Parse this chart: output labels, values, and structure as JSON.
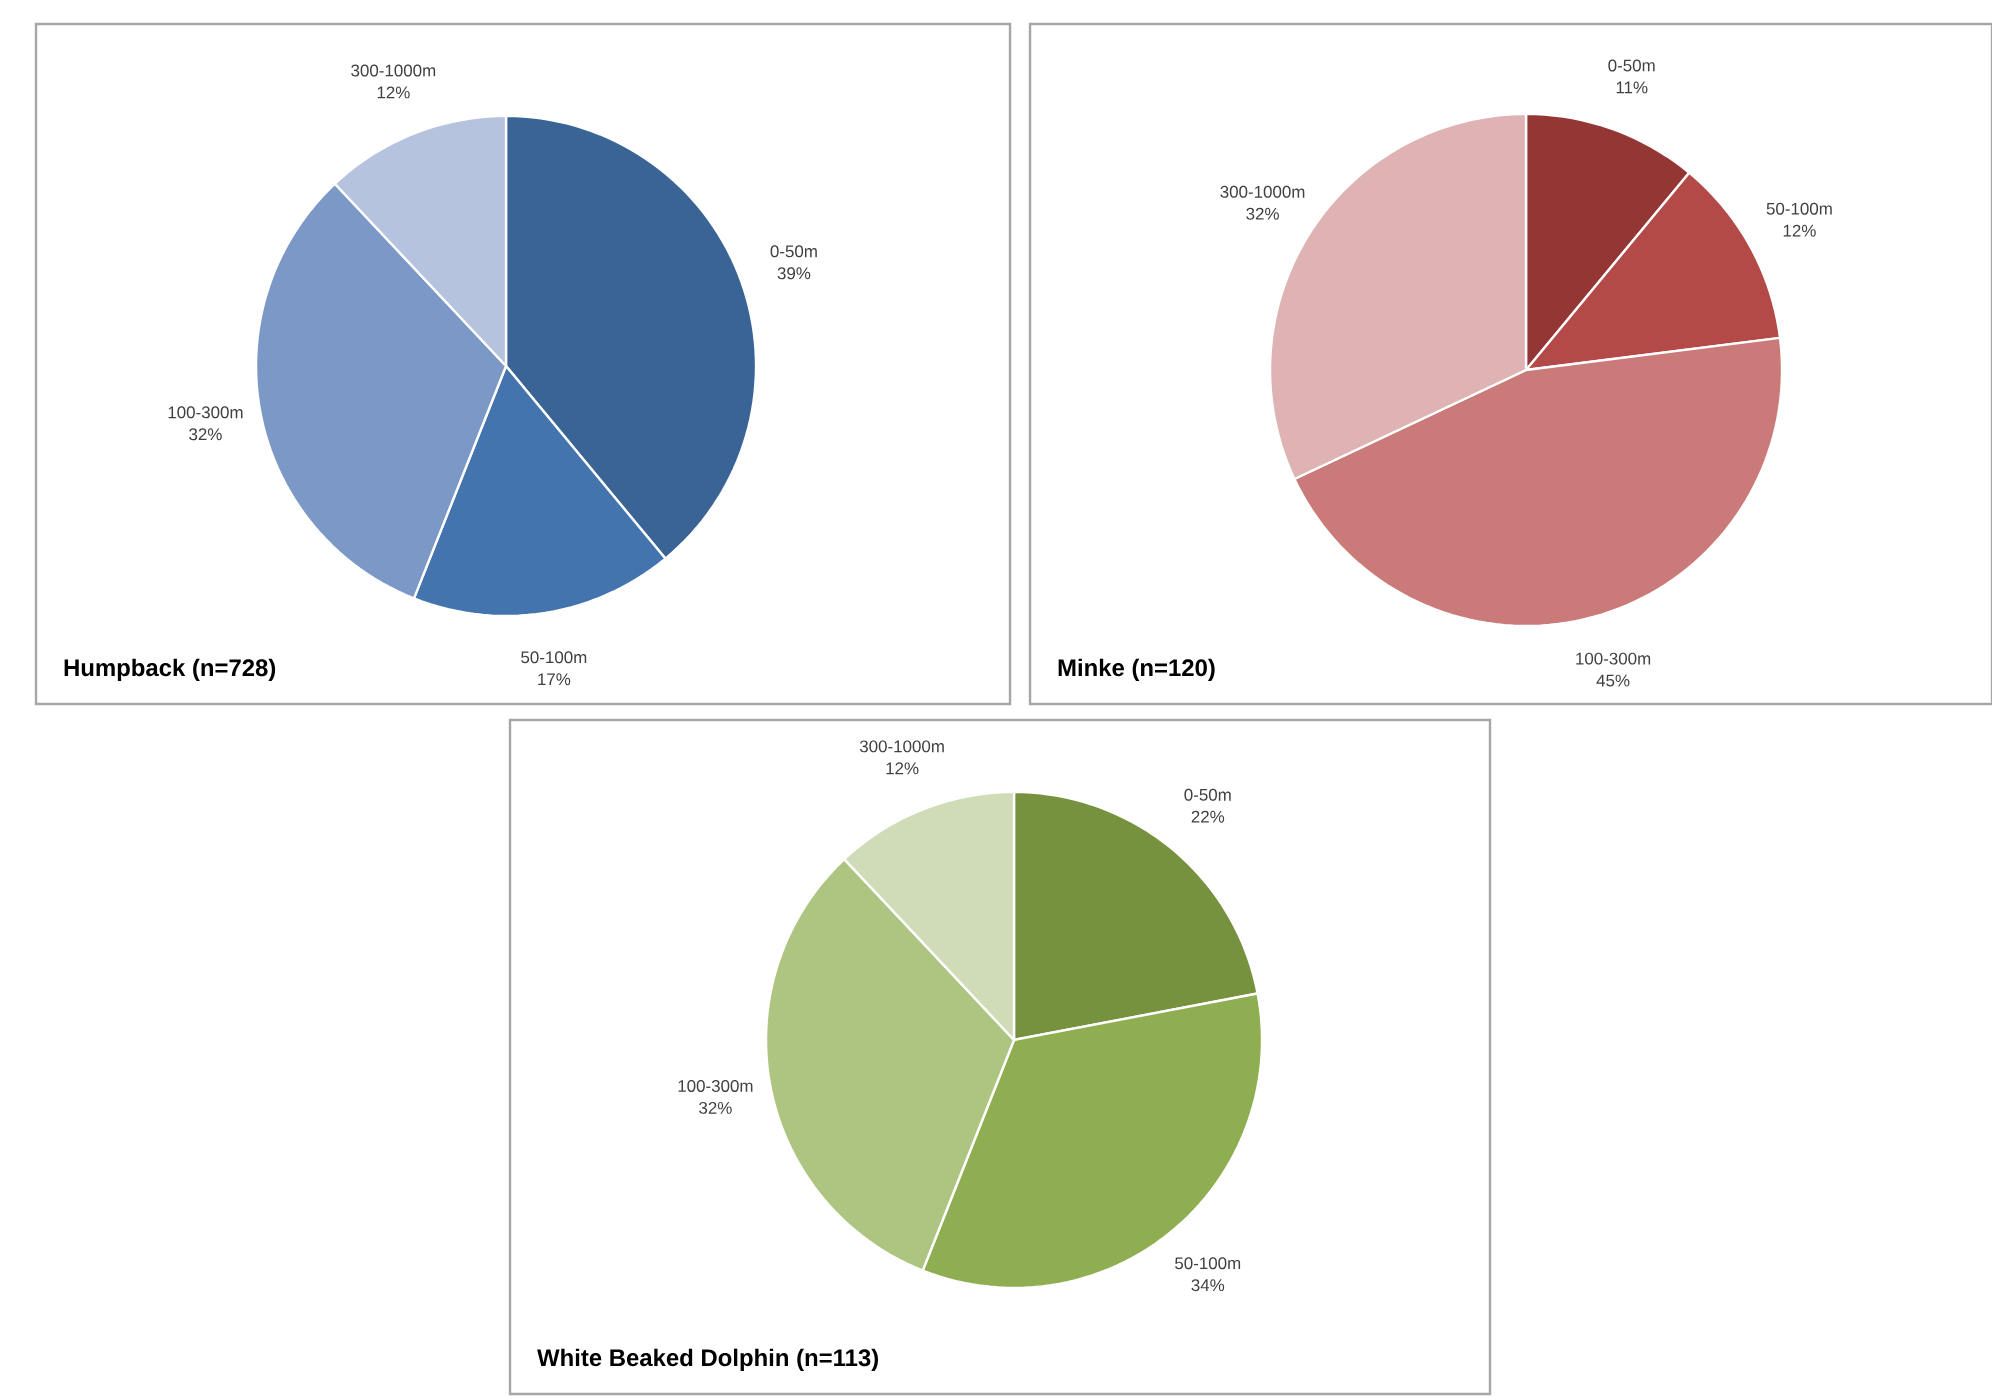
{
  "chart_data": [
    {
      "type": "pie",
      "title": "Humpback (n=728)",
      "categories": [
        "0-50m",
        "50-100m",
        "100-300m",
        "300-1000m"
      ],
      "values": [
        39,
        17,
        32,
        12
      ],
      "colors": [
        "#3a6496",
        "#4474ad",
        "#7b98c6",
        "#b6c3de"
      ],
      "value_labels": [
        "39%",
        "17%",
        "32%",
        "12%"
      ]
    },
    {
      "type": "pie",
      "title": "Minke (n=120)",
      "categories": [
        "0-50m",
        "50-100m",
        "100-300m",
        "300-1000m"
      ],
      "values": [
        11,
        12,
        45,
        32
      ],
      "colors": [
        "#943634",
        "#b44a47",
        "#c97a79",
        "#dfb3b3"
      ],
      "value_labels": [
        "11%",
        "12%",
        "45%",
        "32%"
      ]
    },
    {
      "type": "pie",
      "title": "White Beaked Dolphin (n=113)",
      "categories": [
        "0-50m",
        "50-100m",
        "100-300m",
        "300-1000m"
      ],
      "values": [
        22,
        34,
        32,
        12
      ],
      "colors": [
        "#77923f",
        "#8fae52",
        "#adc581",
        "#d0dcb8"
      ],
      "value_labels": [
        "22%",
        "34%",
        "32%",
        "12%"
      ]
    }
  ]
}
